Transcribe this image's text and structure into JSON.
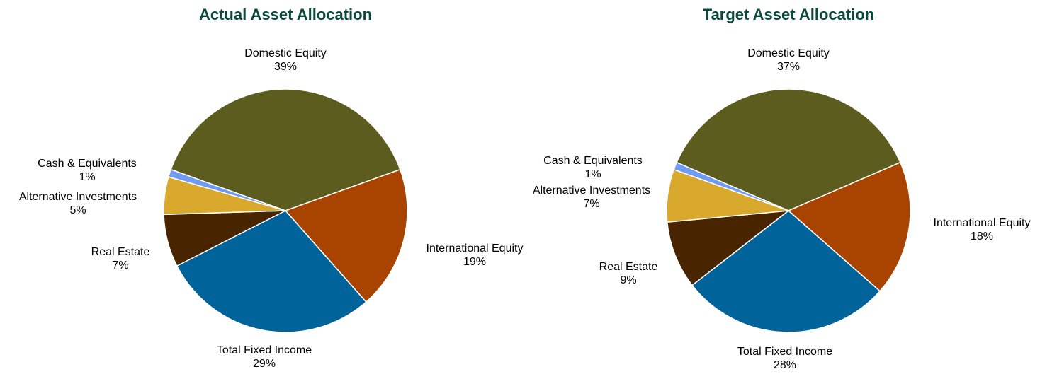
{
  "chart_data": [
    {
      "type": "pie",
      "title": "Actual Asset Allocation",
      "categories": [
        "Domestic Equity",
        "International Equity",
        "Total Fixed Income",
        "Real Estate",
        "Alternative Investments",
        "Cash & Equivalents"
      ],
      "values": [
        39,
        19,
        29,
        7,
        5,
        1
      ],
      "value_labels": [
        "39%",
        "19%",
        "29%",
        "7%",
        "5%",
        "1%"
      ],
      "colors": [
        "#5c5c1f",
        "#a84400",
        "#00639a",
        "#482400",
        "#d9a92d",
        "#6f9cf2"
      ]
    },
    {
      "type": "pie",
      "title": "Target Asset Allocation",
      "categories": [
        "Domestic Equity",
        "International Equity",
        "Total Fixed Income",
        "Real Estate",
        "Alternative Investments",
        "Cash & Equivalents"
      ],
      "values": [
        37,
        18,
        28,
        9,
        7,
        1
      ],
      "value_labels": [
        "37%",
        "18%",
        "28%",
        "9%",
        "7%",
        "1%"
      ],
      "colors": [
        "#5c5c1f",
        "#a84400",
        "#00639a",
        "#482400",
        "#d9a92d",
        "#6f9cf2"
      ]
    }
  ]
}
